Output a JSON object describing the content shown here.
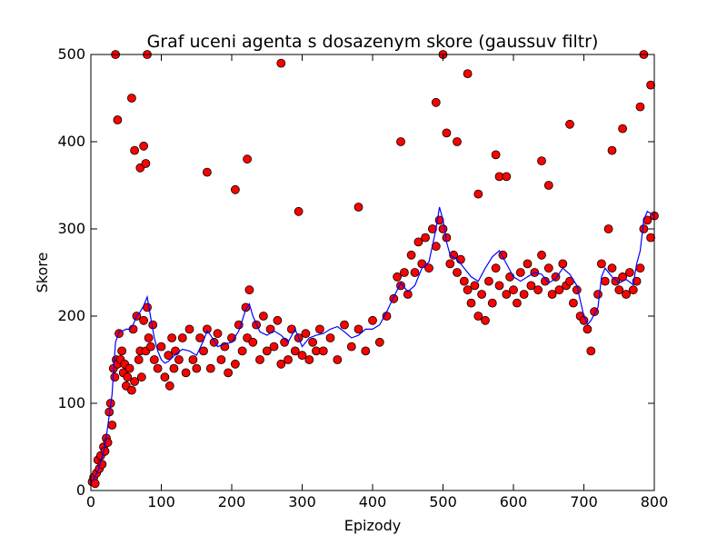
{
  "chart_data": {
    "type": "scatter",
    "title": "Graf uceni agenta s dosazenym skore (gaussuv filtr)",
    "xlabel": "Epizody",
    "ylabel": "Skore",
    "xlim": [
      0,
      800
    ],
    "ylim": [
      0,
      500
    ],
    "xticks": [
      0,
      100,
      200,
      300,
      400,
      500,
      600,
      700,
      800
    ],
    "yticks": [
      0,
      100,
      200,
      300,
      400,
      500
    ],
    "grid": false,
    "legend": "none",
    "colors": {
      "points": "#ff0000",
      "point_edge": "#000000",
      "line": "#0000ff"
    },
    "series": [
      {
        "kind": "scatter",
        "x": [
          2,
          4,
          6,
          8,
          10,
          12,
          14,
          16,
          18,
          20,
          22,
          24,
          26,
          28,
          30,
          32,
          34,
          36,
          38,
          40,
          42,
          44,
          46,
          48,
          50,
          52,
          55,
          58,
          60,
          62,
          65,
          68,
          70,
          72,
          75,
          78,
          80,
          82,
          85,
          88,
          90,
          95,
          100,
          105,
          110,
          112,
          115,
          118,
          120,
          125,
          130,
          135,
          140,
          145,
          150,
          155,
          160,
          165,
          170,
          175,
          180,
          185,
          190,
          195,
          200,
          205,
          210,
          215,
          220,
          222,
          225,
          230,
          235,
          240,
          245,
          250,
          255,
          260,
          265,
          270,
          275,
          280,
          285,
          290,
          295,
          300,
          305,
          310,
          315,
          320,
          325,
          330,
          340,
          350,
          360,
          370,
          380,
          390,
          400,
          410,
          420,
          430,
          435,
          440,
          445,
          450,
          455,
          460,
          465,
          470,
          475,
          480,
          485,
          490,
          495,
          500,
          505,
          510,
          515,
          520,
          525,
          530,
          535,
          540,
          545,
          550,
          555,
          560,
          565,
          570,
          575,
          580,
          585,
          590,
          595,
          600,
          605,
          610,
          615,
          620,
          625,
          630,
          635,
          640,
          645,
          650,
          655,
          660,
          665,
          670,
          675,
          680,
          685,
          690,
          695,
          700,
          705,
          710,
          715,
          720,
          725,
          730,
          735,
          740,
          745,
          750,
          755,
          760,
          765,
          770,
          775,
          780,
          785,
          790,
          795,
          800,
          35,
          38,
          58,
          62,
          70,
          75,
          78,
          80,
          165,
          205,
          222,
          270,
          295,
          380,
          440,
          490,
          500,
          505,
          520,
          535,
          550,
          575,
          580,
          590,
          640,
          650,
          680,
          740,
          755,
          780,
          785,
          795
        ],
        "y": [
          10,
          15,
          8,
          20,
          35,
          25,
          40,
          30,
          50,
          45,
          60,
          55,
          90,
          100,
          75,
          140,
          130,
          150,
          145,
          180,
          150,
          160,
          135,
          145,
          120,
          130,
          140,
          115,
          185,
          125,
          200,
          150,
          160,
          130,
          195,
          160,
          210,
          175,
          165,
          190,
          150,
          140,
          165,
          130,
          155,
          120,
          175,
          140,
          160,
          150,
          175,
          135,
          185,
          150,
          140,
          175,
          160,
          185,
          140,
          170,
          180,
          150,
          165,
          135,
          175,
          145,
          190,
          160,
          210,
          175,
          230,
          170,
          190,
          150,
          200,
          160,
          185,
          165,
          195,
          145,
          170,
          150,
          185,
          160,
          175,
          155,
          180,
          150,
          170,
          160,
          185,
          160,
          175,
          150,
          190,
          165,
          185,
          160,
          195,
          170,
          200,
          220,
          245,
          235,
          250,
          225,
          270,
          250,
          285,
          260,
          290,
          255,
          300,
          280,
          310,
          300,
          290,
          260,
          270,
          250,
          265,
          240,
          230,
          215,
          235,
          200,
          225,
          195,
          240,
          215,
          255,
          235,
          270,
          225,
          245,
          230,
          215,
          250,
          225,
          260,
          235,
          250,
          230,
          270,
          240,
          255,
          225,
          245,
          230,
          260,
          235,
          240,
          215,
          230,
          200,
          195,
          185,
          160,
          205,
          225,
          260,
          240,
          300,
          255,
          240,
          230,
          245,
          225,
          250,
          230,
          240,
          255,
          300,
          310,
          290,
          315,
          500,
          425,
          450,
          390,
          370,
          395,
          375,
          500,
          365,
          345,
          380,
          490,
          320,
          325,
          400,
          445,
          500,
          410,
          400,
          478,
          340,
          385,
          360,
          360,
          378,
          350,
          420,
          390,
          415,
          440,
          500,
          465
        ]
      },
      {
        "kind": "line",
        "x": [
          0,
          10,
          20,
          30,
          35,
          40,
          45,
          50,
          55,
          60,
          65,
          70,
          75,
          80,
          85,
          90,
          95,
          100,
          105,
          110,
          120,
          130,
          140,
          150,
          160,
          165,
          170,
          180,
          190,
          200,
          210,
          215,
          220,
          225,
          230,
          240,
          250,
          260,
          270,
          280,
          290,
          300,
          310,
          320,
          330,
          340,
          350,
          360,
          370,
          380,
          390,
          400,
          410,
          420,
          430,
          440,
          450,
          460,
          470,
          480,
          490,
          495,
          500,
          505,
          510,
          520,
          530,
          540,
          550,
          560,
          570,
          580,
          590,
          600,
          610,
          620,
          630,
          640,
          650,
          660,
          670,
          680,
          690,
          700,
          705,
          710,
          720,
          725,
          730,
          740,
          750,
          760,
          770,
          775,
          780,
          785,
          790,
          800
        ],
        "y": [
          8,
          22,
          50,
          110,
          170,
          182,
          183,
          185,
          185,
          190,
          200,
          205,
          212,
          222,
          198,
          175,
          160,
          150,
          146,
          148,
          156,
          162,
          160,
          155,
          172,
          183,
          178,
          165,
          168,
          170,
          183,
          195,
          208,
          214,
          200,
          182,
          178,
          183,
          178,
          170,
          185,
          165,
          175,
          178,
          180,
          185,
          188,
          182,
          175,
          178,
          185,
          185,
          190,
          205,
          222,
          238,
          228,
          235,
          255,
          262,
          300,
          325,
          310,
          285,
          270,
          265,
          255,
          245,
          240,
          255,
          268,
          275,
          260,
          245,
          240,
          245,
          250,
          248,
          238,
          243,
          255,
          248,
          235,
          200,
          190,
          195,
          210,
          245,
          255,
          245,
          238,
          242,
          236,
          260,
          275,
          310,
          320,
          315
        ]
      }
    ]
  }
}
